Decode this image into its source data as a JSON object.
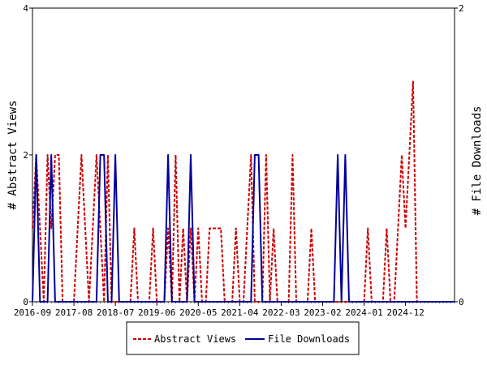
{
  "chart_data": {
    "type": "line",
    "x_ticks": [
      "2016-09",
      "2017-08",
      "2018-07",
      "2019-06",
      "2020-05",
      "2021-04",
      "2022-03",
      "2023-02",
      "2024-01",
      "2024-12"
    ],
    "y_left": {
      "label": "# Abstract Views",
      "ticks": [
        "0",
        "2",
        "4"
      ],
      "range": [
        0,
        4
      ]
    },
    "y_right": {
      "label": "# File Downloads",
      "ticks": [
        "0",
        "2"
      ],
      "range": [
        0,
        2
      ]
    },
    "x_range_months": [
      0,
      112
    ],
    "series": [
      {
        "name": "Abstract Views",
        "axis": "left",
        "color": "#cc0000",
        "style": "dashed",
        "points": [
          [
            0,
            1
          ],
          [
            1,
            2
          ],
          [
            2,
            1
          ],
          [
            3,
            0
          ],
          [
            4,
            2
          ],
          [
            5,
            1
          ],
          [
            6,
            2
          ],
          [
            7,
            2
          ],
          [
            8,
            0
          ],
          [
            11,
            0
          ],
          [
            12,
            1
          ],
          [
            13,
            2
          ],
          [
            14,
            1
          ],
          [
            15,
            0
          ],
          [
            16,
            1
          ],
          [
            17,
            2
          ],
          [
            18,
            1
          ],
          [
            19,
            0
          ],
          [
            20,
            2
          ],
          [
            21,
            0
          ],
          [
            22,
            0
          ],
          [
            23,
            0
          ],
          [
            24,
            0
          ],
          [
            25,
            0
          ],
          [
            26,
            0
          ],
          [
            27,
            1
          ],
          [
            28,
            0
          ],
          [
            29,
            0
          ],
          [
            30,
            0
          ],
          [
            31,
            0
          ],
          [
            32,
            1
          ],
          [
            33,
            0
          ],
          [
            34,
            0
          ],
          [
            35,
            0
          ],
          [
            36,
            1
          ],
          [
            37,
            0
          ],
          [
            38,
            2
          ],
          [
            39,
            0
          ],
          [
            40,
            1
          ],
          [
            41,
            0
          ],
          [
            42,
            1
          ],
          [
            43,
            0
          ],
          [
            44,
            1
          ],
          [
            45,
            0
          ],
          [
            46,
            0
          ],
          [
            47,
            1
          ],
          [
            48,
            1
          ],
          [
            49,
            1
          ],
          [
            50,
            1
          ],
          [
            51,
            0
          ],
          [
            52,
            0
          ],
          [
            53,
            0
          ],
          [
            54,
            1
          ],
          [
            55,
            0
          ],
          [
            56,
            0
          ],
          [
            57,
            1
          ],
          [
            58,
            2
          ],
          [
            59,
            0
          ],
          [
            60,
            0
          ],
          [
            61,
            0
          ],
          [
            62,
            2
          ],
          [
            63,
            0
          ],
          [
            64,
            1
          ],
          [
            65,
            0
          ],
          [
            66,
            0
          ],
          [
            67,
            0
          ],
          [
            68,
            0
          ],
          [
            69,
            2
          ],
          [
            70,
            0
          ],
          [
            71,
            0
          ],
          [
            72,
            0
          ],
          [
            73,
            0
          ],
          [
            74,
            1
          ],
          [
            75,
            0
          ],
          [
            76,
            0
          ],
          [
            77,
            0
          ],
          [
            78,
            0
          ],
          [
            79,
            0
          ],
          [
            80,
            0
          ],
          [
            81,
            0
          ],
          [
            82,
            0
          ],
          [
            83,
            0
          ],
          [
            84,
            0
          ],
          [
            85,
            0
          ],
          [
            86,
            0
          ],
          [
            87,
            0
          ],
          [
            88,
            0
          ],
          [
            89,
            1
          ],
          [
            90,
            0
          ],
          [
            91,
            0
          ],
          [
            92,
            0
          ],
          [
            93,
            0
          ],
          [
            94,
            1
          ],
          [
            95,
            0
          ],
          [
            96,
            0
          ],
          [
            97,
            1
          ],
          [
            98,
            2
          ],
          [
            99,
            1
          ],
          [
            100,
            2
          ],
          [
            101,
            3
          ],
          [
            102,
            0
          ],
          [
            103,
            0
          ],
          [
            104,
            0
          ],
          [
            105,
            0
          ],
          [
            106,
            0
          ],
          [
            107,
            0
          ],
          [
            108,
            0
          ],
          [
            109,
            0
          ],
          [
            110,
            0
          ],
          [
            111,
            0
          ],
          [
            112,
            0
          ]
        ]
      },
      {
        "name": "File Downloads",
        "axis": "right",
        "color": "#000099",
        "style": "solid",
        "points": [
          [
            0,
            0
          ],
          [
            1,
            1
          ],
          [
            2,
            0
          ],
          [
            3,
            0
          ],
          [
            4,
            0
          ],
          [
            5,
            1
          ],
          [
            6,
            0
          ],
          [
            7,
            0
          ],
          [
            8,
            0
          ],
          [
            9,
            0
          ],
          [
            10,
            0
          ],
          [
            11,
            0
          ],
          [
            12,
            0
          ],
          [
            13,
            0
          ],
          [
            14,
            0
          ],
          [
            15,
            0
          ],
          [
            16,
            0
          ],
          [
            17,
            0
          ],
          [
            18,
            1
          ],
          [
            19,
            1
          ],
          [
            20,
            0
          ],
          [
            21,
            0
          ],
          [
            22,
            1
          ],
          [
            23,
            0
          ],
          [
            24,
            0
          ],
          [
            25,
            0
          ],
          [
            26,
            0
          ],
          [
            27,
            0
          ],
          [
            28,
            0
          ],
          [
            29,
            0
          ],
          [
            30,
            0
          ],
          [
            31,
            0
          ],
          [
            32,
            0
          ],
          [
            33,
            0
          ],
          [
            34,
            0
          ],
          [
            35,
            0
          ],
          [
            36,
            1
          ],
          [
            37,
            0
          ],
          [
            38,
            0
          ],
          [
            39,
            0
          ],
          [
            40,
            0
          ],
          [
            41,
            0
          ],
          [
            42,
            1
          ],
          [
            43,
            0
          ],
          [
            44,
            0
          ],
          [
            45,
            0
          ],
          [
            46,
            0
          ],
          [
            47,
            0
          ],
          [
            48,
            0
          ],
          [
            49,
            0
          ],
          [
            50,
            0
          ],
          [
            51,
            0
          ],
          [
            52,
            0
          ],
          [
            53,
            0
          ],
          [
            54,
            0
          ],
          [
            55,
            0
          ],
          [
            56,
            0
          ],
          [
            57,
            0
          ],
          [
            58,
            0
          ],
          [
            59,
            1
          ],
          [
            60,
            1
          ],
          [
            61,
            0
          ],
          [
            62,
            0
          ],
          [
            63,
            0
          ],
          [
            64,
            0
          ],
          [
            65,
            0
          ],
          [
            66,
            0
          ],
          [
            67,
            0
          ],
          [
            68,
            0
          ],
          [
            69,
            0
          ],
          [
            70,
            0
          ],
          [
            71,
            0
          ],
          [
            72,
            0
          ],
          [
            73,
            0
          ],
          [
            74,
            0
          ],
          [
            75,
            0
          ],
          [
            76,
            0
          ],
          [
            77,
            0
          ],
          [
            78,
            0
          ],
          [
            79,
            0
          ],
          [
            80,
            0
          ],
          [
            81,
            1
          ],
          [
            82,
            0
          ],
          [
            83,
            1
          ],
          [
            84,
            0
          ],
          [
            85,
            0
          ],
          [
            86,
            0
          ],
          [
            87,
            0
          ],
          [
            88,
            0
          ],
          [
            89,
            0
          ],
          [
            90,
            0
          ],
          [
            91,
            0
          ],
          [
            92,
            0
          ],
          [
            93,
            0
          ],
          [
            94,
            0
          ],
          [
            95,
            0
          ],
          [
            96,
            0
          ],
          [
            97,
            0
          ],
          [
            98,
            0
          ],
          [
            99,
            0
          ],
          [
            100,
            0
          ],
          [
            101,
            0
          ],
          [
            102,
            0
          ],
          [
            103,
            0
          ],
          [
            104,
            0
          ],
          [
            105,
            0
          ],
          [
            106,
            0
          ],
          [
            107,
            0
          ],
          [
            108,
            0
          ],
          [
            109,
            0
          ],
          [
            110,
            0
          ],
          [
            111,
            0
          ],
          [
            112,
            0
          ]
        ]
      }
    ],
    "legend": {
      "placement": "bottom-center",
      "entries": [
        "Abstract Views",
        "File Downloads"
      ]
    },
    "grid": false
  }
}
